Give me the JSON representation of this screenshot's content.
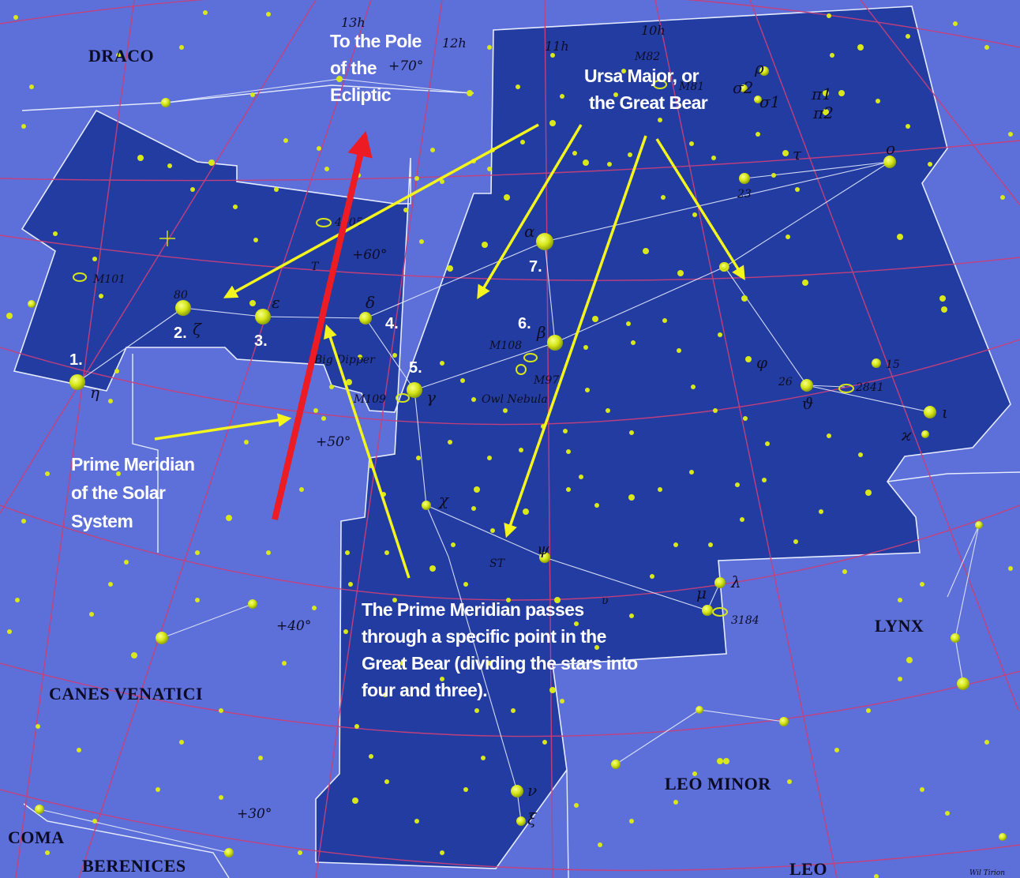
{
  "constellations": {
    "draco": "DRACO",
    "canes_venatici": "CANES VENATICI",
    "coma_line1": "COMA",
    "coma_line2": "BERENICES",
    "lynx": "LYNX",
    "leo_minor": "LEO MINOR",
    "leo": "LEO"
  },
  "hour_labels": {
    "h13": "13h",
    "h12": "12h",
    "h11": "11h",
    "h10": "10h"
  },
  "declination_labels": {
    "d70": "+70°",
    "d60": "+60°",
    "d50": "+50°",
    "d40": "+40°",
    "d30": "+30°"
  },
  "greek_labels": {
    "alpha": "α",
    "beta": "β",
    "gamma": "γ",
    "delta": "δ",
    "epsilon": "ε",
    "zeta": "ζ",
    "eta": "η",
    "chi": "χ",
    "psi": "ψ",
    "lambda": "λ",
    "mu": "μ",
    "nu": "ν",
    "xi": "ξ",
    "theta": "ϑ",
    "iota": "ι",
    "kappa": "ϰ",
    "phi": "φ",
    "tau": "τ",
    "omicron": "o",
    "rho": "ρ",
    "sigma1": "σ1",
    "sigma2": "σ2",
    "pi1": "π1",
    "pi2": "π2",
    "upsilon": "υ",
    "T": "T"
  },
  "object_labels": {
    "m101": "M101",
    "m82": "M82",
    "m81": "M81",
    "m108": "M108",
    "m97": "M97",
    "m109": "M109",
    "ngc4605": "4605",
    "ngc2841": "2841",
    "ngc3184": "3184",
    "owl": "Owl Nebula",
    "big_dipper": "Big Dipper",
    "st": "ST",
    "n80": "80",
    "n23": "23",
    "n26": "26",
    "n15": "15"
  },
  "numbered_stars": {
    "n1": "1.",
    "n2": "2.",
    "n3": "3.",
    "n4": "4.",
    "n5": "5.",
    "n6": "6.",
    "n7": "7."
  },
  "annotations": {
    "pole": [
      "To the Pole",
      "of the",
      "Ecliptic"
    ],
    "ursa": [
      "Ursa Major, or",
      "the Great Bear"
    ],
    "meridian": [
      "Prime Meridian",
      "of the Solar",
      "System"
    ],
    "passes": [
      "The Prime Meridian passes",
      "through a specific point in the",
      "Great Bear (dividing the stars into",
      "four and three)."
    ]
  },
  "credit": "Wil Tirion",
  "colors": {
    "sky": "#5d6fd8",
    "constellation_area": "#233ca2",
    "grid_lines": "#c8407a",
    "boundary": "#e6ecff",
    "star": "#d8e81a",
    "red_arrow": "#ec1b24",
    "yellow_arrow": "#f3f51c"
  }
}
